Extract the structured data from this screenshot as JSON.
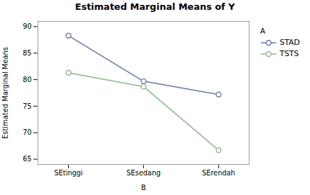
{
  "chart_data": {
    "type": "line",
    "title": "Estimated Marginal Means of Y",
    "xlabel": "B",
    "ylabel": "Estimated Marginal Means",
    "categories": [
      "SEtinggi",
      "SEsedang",
      "SErendah"
    ],
    "series": [
      {
        "name": "STAD",
        "color": "#6677bb",
        "values": [
          88.3,
          79.7,
          77.2
        ],
        "marker": "circle"
      },
      {
        "name": "TSTS",
        "color": "#88bb88",
        "values": [
          81.3,
          78.7,
          66.7
        ],
        "marker": "circle"
      }
    ],
    "ylim": [
      64,
      91
    ],
    "yticks": [
      65,
      70,
      75,
      80,
      85,
      90
    ],
    "grid": false,
    "legend": "right",
    "legend_title": "A"
  }
}
